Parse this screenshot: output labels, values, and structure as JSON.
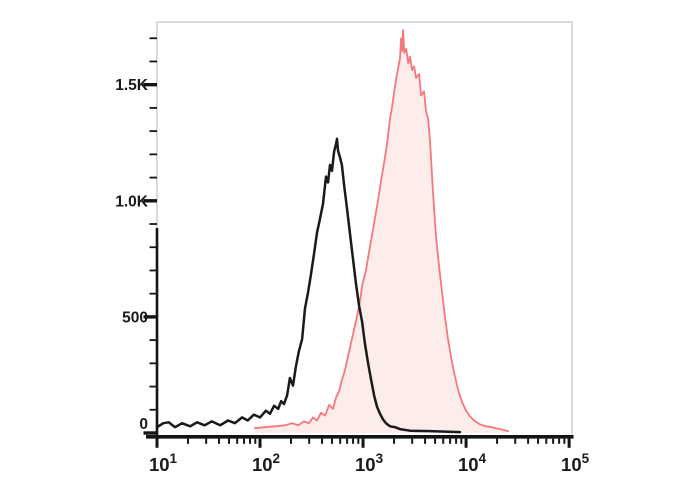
{
  "figure": {
    "kind": "flow-cytometry-overlay-histogram",
    "background": "#ffffff",
    "frame_color": "#c5c5cc",
    "axis_color": "#141414",
    "tick_color": "#141414",
    "label_color": "#1a1a1a"
  },
  "chart_data": {
    "type": "area",
    "title": "",
    "xlabel": "",
    "ylabel": "",
    "x_scale": "log10",
    "xlim": [
      10,
      106700
    ],
    "ylim": [
      0,
      1770
    ],
    "grid": false,
    "legend": "none",
    "x_ticks": {
      "base": "10",
      "exponents": [
        1,
        2,
        3,
        4,
        5
      ],
      "labels": [
        "10^1",
        "10^2",
        "10^3",
        "10^4",
        "10^5"
      ],
      "minor_multiples": [
        2,
        3,
        4,
        5,
        6,
        7,
        8,
        9
      ]
    },
    "y_ticks": {
      "major": [
        {
          "value": 0,
          "label": "0"
        },
        {
          "value": 500,
          "label": "500"
        },
        {
          "value": 1000,
          "label": "1.0K"
        },
        {
          "value": 1500,
          "label": "1.5K"
        }
      ],
      "minor_step": 100,
      "minor_max": 1700
    },
    "series": [
      {
        "name": "red-filled-histogram",
        "style": "filled",
        "stroke": "#f5787d",
        "fill": "#fcecea",
        "stroke_width": 1.8,
        "peak": {
          "x": 2449,
          "count": 1735
        },
        "points": [
          [
            89,
            21
          ],
          [
            112,
            25
          ],
          [
            140,
            29
          ],
          [
            175,
            33
          ],
          [
            205,
            42
          ],
          [
            234,
            33
          ],
          [
            267,
            50
          ],
          [
            299,
            42
          ],
          [
            327,
            67
          ],
          [
            357,
            54
          ],
          [
            391,
            87
          ],
          [
            428,
            75
          ],
          [
            468,
            121
          ],
          [
            512,
            104
          ],
          [
            547,
            154
          ],
          [
            585,
            179
          ],
          [
            624,
            229
          ],
          [
            668,
            271
          ],
          [
            714,
            329
          ],
          [
            764,
            387
          ],
          [
            818,
            446
          ],
          [
            875,
            504
          ],
          [
            936,
            571
          ],
          [
            978,
            633
          ],
          [
            1070,
            704
          ],
          [
            1143,
            779
          ],
          [
            1223,
            854
          ],
          [
            1308,
            929
          ],
          [
            1400,
            1004
          ],
          [
            1496,
            1088
          ],
          [
            1600,
            1163
          ],
          [
            1710,
            1246
          ],
          [
            1828,
            1354
          ],
          [
            1914,
            1404
          ],
          [
            2000,
            1467
          ],
          [
            2089,
            1521
          ],
          [
            2188,
            1571
          ],
          [
            2286,
            1613
          ],
          [
            2339,
            1700
          ],
          [
            2393,
            1646
          ],
          [
            2449,
            1735
          ],
          [
            2506,
            1638
          ],
          [
            2624,
            1654
          ],
          [
            2748,
            1592
          ],
          [
            2858,
            1621
          ],
          [
            2992,
            1563
          ],
          [
            3133,
            1579
          ],
          [
            3273,
            1529
          ],
          [
            3500,
            1546
          ],
          [
            3657,
            1454
          ],
          [
            3908,
            1471
          ],
          [
            4093,
            1383
          ],
          [
            4280,
            1354
          ],
          [
            4467,
            1258
          ],
          [
            4786,
            1029
          ],
          [
            5117,
            842
          ],
          [
            5470,
            717
          ],
          [
            5847,
            604
          ],
          [
            6252,
            496
          ],
          [
            6684,
            404
          ],
          [
            7146,
            329
          ],
          [
            7639,
            262
          ],
          [
            8356,
            187
          ],
          [
            9141,
            133
          ],
          [
            10000,
            96
          ],
          [
            10940,
            71
          ],
          [
            12220,
            50
          ],
          [
            13650,
            37
          ],
          [
            15630,
            29
          ],
          [
            17870,
            25
          ],
          [
            21380,
            17
          ],
          [
            25590,
            8
          ]
        ]
      },
      {
        "name": "black-open-histogram",
        "style": "open",
        "stroke": "#1a1a1a",
        "fill": "none",
        "stroke_width": 2.5,
        "peak": {
          "x": 559,
          "count": 1267
        },
        "points": [
          [
            10,
            25
          ],
          [
            11.5,
            42
          ],
          [
            13,
            46
          ],
          [
            15,
            25
          ],
          [
            17.5,
            42
          ],
          [
            21,
            29
          ],
          [
            24.5,
            46
          ],
          [
            29,
            33
          ],
          [
            34,
            50
          ],
          [
            41,
            33
          ],
          [
            49,
            54
          ],
          [
            57,
            42
          ],
          [
            67,
            67
          ],
          [
            76,
            54
          ],
          [
            87,
            79
          ],
          [
            100,
            67
          ],
          [
            114,
            96
          ],
          [
            125,
            83
          ],
          [
            137,
            117
          ],
          [
            150,
            104
          ],
          [
            160,
            137
          ],
          [
            171,
            125
          ],
          [
            183,
            162
          ],
          [
            195,
            237
          ],
          [
            209,
            204
          ],
          [
            223,
            287
          ],
          [
            239,
            354
          ],
          [
            256,
            404
          ],
          [
            273,
            537
          ],
          [
            292,
            604
          ],
          [
            313,
            687
          ],
          [
            334,
            771
          ],
          [
            357,
            862
          ],
          [
            383,
            925
          ],
          [
            409,
            987
          ],
          [
            437,
            1104
          ],
          [
            457,
            1079
          ],
          [
            478,
            1154
          ],
          [
            500,
            1129
          ],
          [
            524,
            1212
          ],
          [
            547,
            1246
          ],
          [
            559,
            1267
          ],
          [
            571,
            1216
          ],
          [
            597,
            1187
          ],
          [
            624,
            1154
          ],
          [
            654,
            1071
          ],
          [
            699,
            967
          ],
          [
            748,
            854
          ],
          [
            800,
            746
          ],
          [
            855,
            642
          ],
          [
            914,
            550
          ],
          [
            978,
            479
          ],
          [
            1045,
            383
          ],
          [
            1119,
            300
          ],
          [
            1196,
            229
          ],
          [
            1279,
            162
          ],
          [
            1368,
            112
          ],
          [
            1462,
            83
          ],
          [
            1563,
            58
          ],
          [
            1671,
            42
          ],
          [
            1828,
            29
          ],
          [
            2046,
            25
          ],
          [
            2286,
            17
          ],
          [
            2858,
            10
          ],
          [
            4467,
            8
          ],
          [
            8740,
            4
          ]
        ]
      }
    ]
  }
}
